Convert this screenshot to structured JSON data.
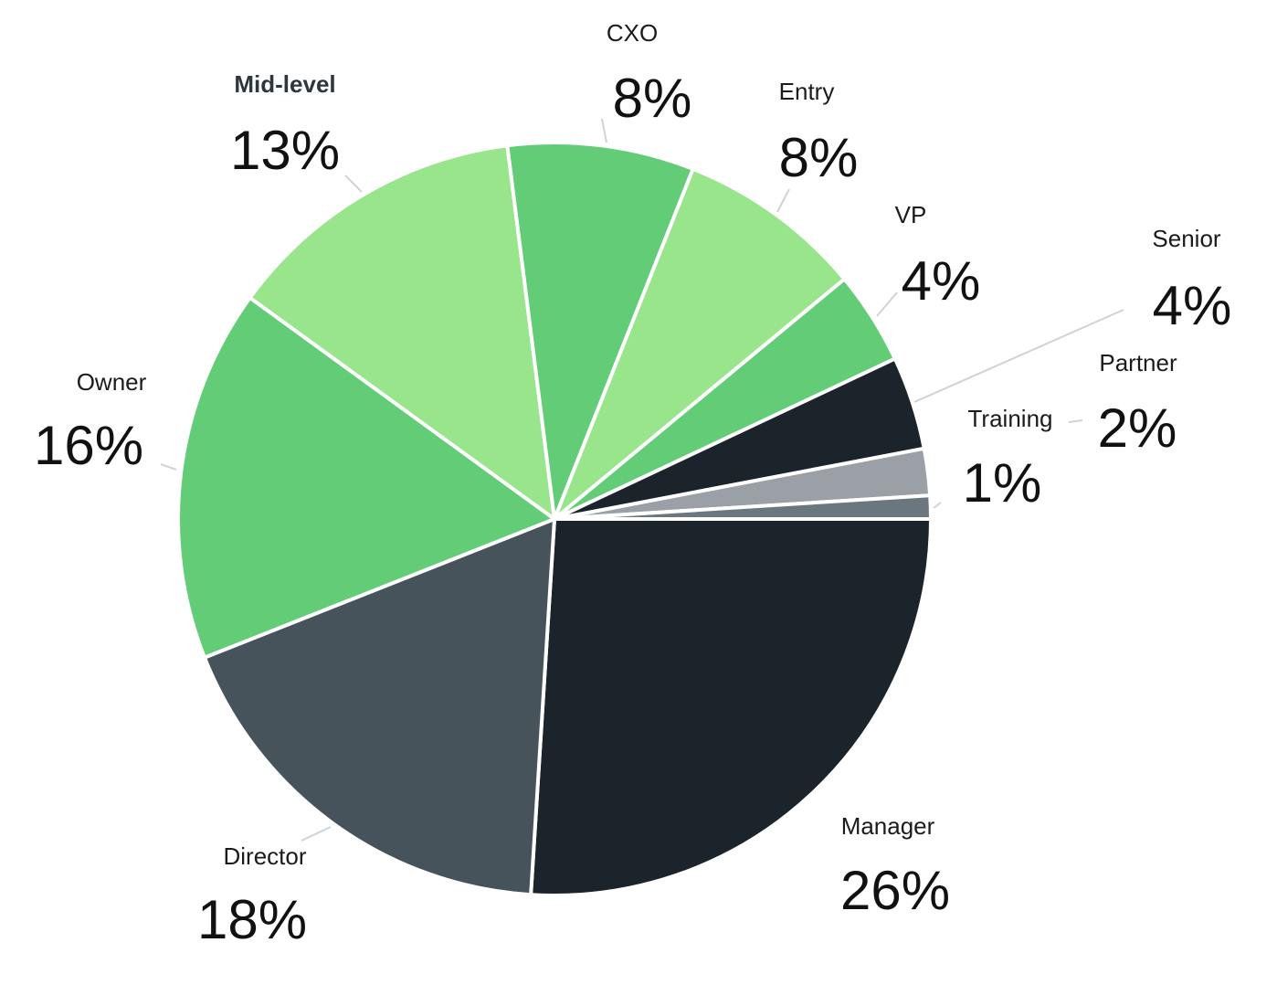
{
  "chart_data": {
    "type": "pie",
    "title": "",
    "slices": [
      {
        "label": "Manager",
        "value": 26,
        "display": "26%",
        "color": "#1b232b"
      },
      {
        "label": "Director",
        "value": 18,
        "display": "18%",
        "color": "#46535b"
      },
      {
        "label": "Owner",
        "value": 16,
        "display": "16%",
        "color": "#63cc77"
      },
      {
        "label": "Mid-level",
        "value": 13,
        "display": "13%",
        "color": "#98e58c"
      },
      {
        "label": "CXO",
        "value": 8,
        "display": "8%",
        "color": "#63cc77"
      },
      {
        "label": "Entry",
        "value": 8,
        "display": "8%",
        "color": "#98e58c"
      },
      {
        "label": "VP",
        "value": 4,
        "display": "4%",
        "color": "#63cc77"
      },
      {
        "label": "Senior",
        "value": 4,
        "display": "4%",
        "color": "#1b232b"
      },
      {
        "label": "Partner",
        "value": 2,
        "display": "2%",
        "color": "#9aa0a6"
      },
      {
        "label": "Training",
        "value": 1,
        "display": "1%",
        "color": "#6b777e"
      }
    ],
    "legend": "none"
  }
}
